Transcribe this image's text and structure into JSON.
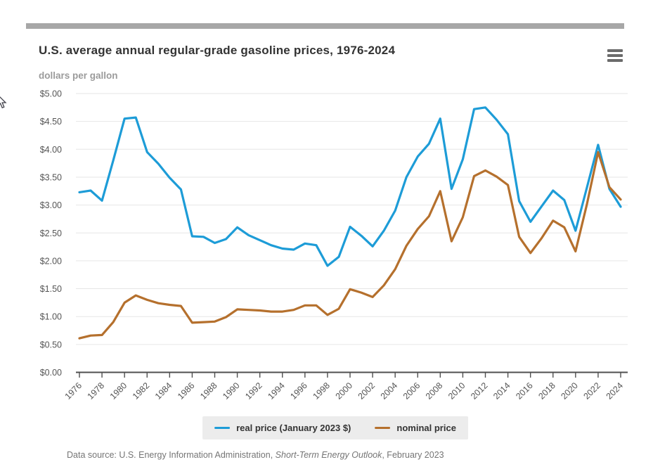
{
  "header": {
    "title": "U.S. average annual regular-grade gasoline prices, 1976-2024",
    "subtitle": "dollars per gallon"
  },
  "menu": {
    "icon": "hamburger-menu-icon"
  },
  "footer": {
    "prefix": "Data source: U.S. Energy Information Administration, ",
    "italic": "Short-Term Energy Outlook",
    "suffix": ", February 2023"
  },
  "colors": {
    "real_series": "#1d9cd7",
    "nominal_series": "#b5702d",
    "grid": "#e6e6e6",
    "axis": "#4f4f4f",
    "tick_label": "#555555",
    "topbar": "#a7a7a7",
    "legend_background": "#ececec"
  },
  "chart_data": {
    "type": "line",
    "title": "U.S. average annual regular-grade gasoline prices, 1976-2024",
    "ylabel": "dollars per gallon",
    "xlabel": "",
    "ylim": [
      0,
      5
    ],
    "y_tick_step": 0.5,
    "y_tick_prefix": "$",
    "x_start": 1976,
    "x_end": 2024,
    "x_tick_step": 2,
    "grid": "horizontal",
    "legend_position": "bottom",
    "x": [
      1976,
      1977,
      1978,
      1979,
      1980,
      1981,
      1982,
      1983,
      1984,
      1985,
      1986,
      1987,
      1988,
      1989,
      1990,
      1991,
      1992,
      1993,
      1994,
      1995,
      1996,
      1997,
      1998,
      1999,
      2000,
      2001,
      2002,
      2003,
      2004,
      2005,
      2006,
      2007,
      2008,
      2009,
      2010,
      2011,
      2012,
      2013,
      2014,
      2015,
      2016,
      2017,
      2018,
      2019,
      2020,
      2021,
      2022,
      2023,
      2024
    ],
    "x_tick_labels": [
      "1976",
      "1978",
      "1980",
      "1982",
      "1984",
      "1986",
      "1988",
      "1990",
      "1992",
      "1994",
      "1996",
      "1998",
      "2000",
      "2002",
      "2004",
      "2006",
      "2008",
      "2010",
      "2012",
      "2014",
      "2016",
      "2018",
      "2020",
      "2022",
      "2024"
    ],
    "y_tick_labels": [
      "$0.00",
      "$0.50",
      "$1.00",
      "$1.50",
      "$2.00",
      "$2.50",
      "$3.00",
      "$3.50",
      "$4.00",
      "$4.50",
      "$5.00"
    ],
    "series": [
      {
        "name": "real price (January 2023 $)",
        "color": "#1d9cd7",
        "values": [
          3.23,
          3.26,
          3.08,
          3.8,
          4.55,
          4.57,
          3.95,
          3.74,
          3.49,
          3.28,
          2.44,
          2.43,
          2.32,
          2.39,
          2.6,
          2.46,
          2.37,
          2.28,
          2.22,
          2.2,
          2.31,
          2.28,
          1.91,
          2.07,
          2.61,
          2.45,
          2.26,
          2.54,
          2.9,
          3.5,
          3.87,
          4.1,
          4.55,
          3.29,
          3.82,
          4.72,
          4.75,
          4.53,
          4.27,
          3.07,
          2.7,
          2.98,
          3.26,
          3.09,
          2.54,
          3.31,
          4.08,
          3.29,
          2.97
        ]
      },
      {
        "name": "nominal price",
        "color": "#b5702d",
        "values": [
          0.61,
          0.66,
          0.67,
          0.9,
          1.25,
          1.38,
          1.3,
          1.24,
          1.21,
          1.19,
          0.89,
          0.9,
          0.91,
          0.99,
          1.13,
          1.12,
          1.11,
          1.09,
          1.09,
          1.12,
          1.2,
          1.2,
          1.03,
          1.14,
          1.49,
          1.43,
          1.35,
          1.56,
          1.85,
          2.27,
          2.57,
          2.8,
          3.25,
          2.35,
          2.78,
          3.52,
          3.62,
          3.51,
          3.36,
          2.43,
          2.14,
          2.41,
          2.72,
          2.6,
          2.17,
          3.01,
          3.95,
          3.32,
          3.1
        ]
      }
    ]
  }
}
